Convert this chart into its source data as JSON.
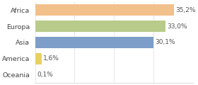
{
  "categories": [
    "Africa",
    "Europa",
    "Asia",
    "America",
    "Oceania"
  ],
  "values": [
    35.2,
    33.0,
    30.1,
    1.6,
    0.1
  ],
  "labels": [
    "35,2%",
    "33,0%",
    "30,1%",
    "1,6%",
    "0,1%"
  ],
  "bar_colors": [
    "#f2c08a",
    "#b8cb8a",
    "#7d9ec8",
    "#e8d060",
    "#a0c8a0"
  ],
  "xlim": [
    0,
    40
  ],
  "background_color": "#ffffff",
  "bar_height": 0.72,
  "label_fontsize": 6.5,
  "tick_fontsize": 6.8
}
